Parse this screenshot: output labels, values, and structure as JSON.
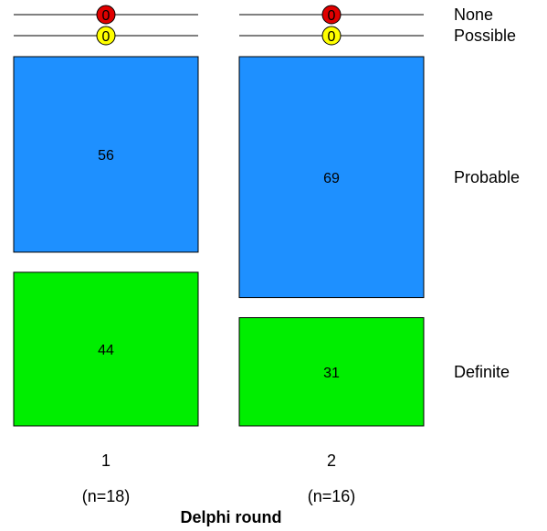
{
  "chart_data": {
    "type": "bar",
    "subtype": "stacked-percent-mosaic",
    "xlabel": "Delphi round",
    "categories": [
      "1",
      "2"
    ],
    "category_sublabels": [
      "(n=18)",
      "(n=16)"
    ],
    "series": [
      {
        "name": "None",
        "values": [
          0,
          0
        ],
        "color": "#e00000",
        "display": "circle"
      },
      {
        "name": "Possible",
        "values": [
          0,
          0
        ],
        "color": "#ffff00",
        "display": "circle"
      },
      {
        "name": "Probable",
        "values": [
          56,
          69
        ],
        "color": "#1e90ff",
        "display": "box"
      },
      {
        "name": "Definite",
        "values": [
          44,
          31
        ],
        "color": "#00ee00",
        "display": "box"
      }
    ]
  }
}
